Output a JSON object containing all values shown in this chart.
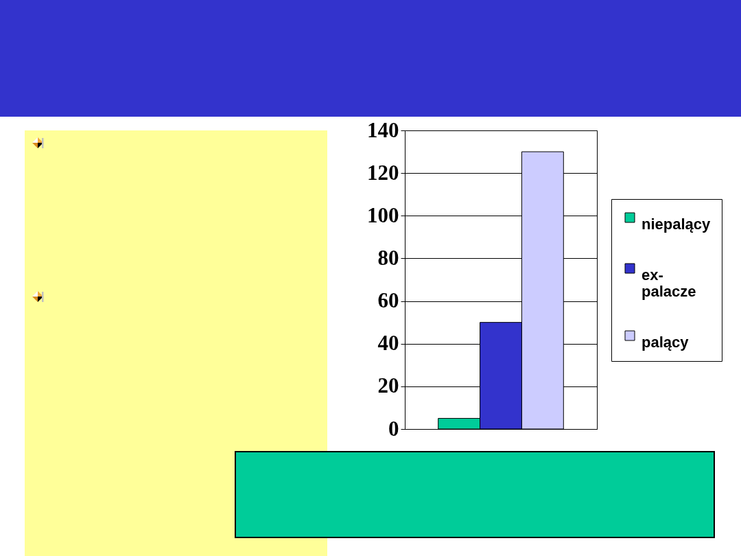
{
  "chart_data": {
    "type": "bar",
    "categories": [
      null
    ],
    "series": [
      {
        "name": "niepalący",
        "color": "#00cc99",
        "values": [
          5
        ]
      },
      {
        "name": "ex-palacze",
        "color": "#3333cc",
        "values": [
          50
        ]
      },
      {
        "name": "palący",
        "color": "#ccccff",
        "values": [
          130
        ]
      }
    ],
    "ylim": [
      0,
      140
    ],
    "yticks": [
      0,
      20,
      40,
      60,
      80,
      100,
      120,
      140
    ],
    "grid": "y",
    "legend": "right"
  }
}
